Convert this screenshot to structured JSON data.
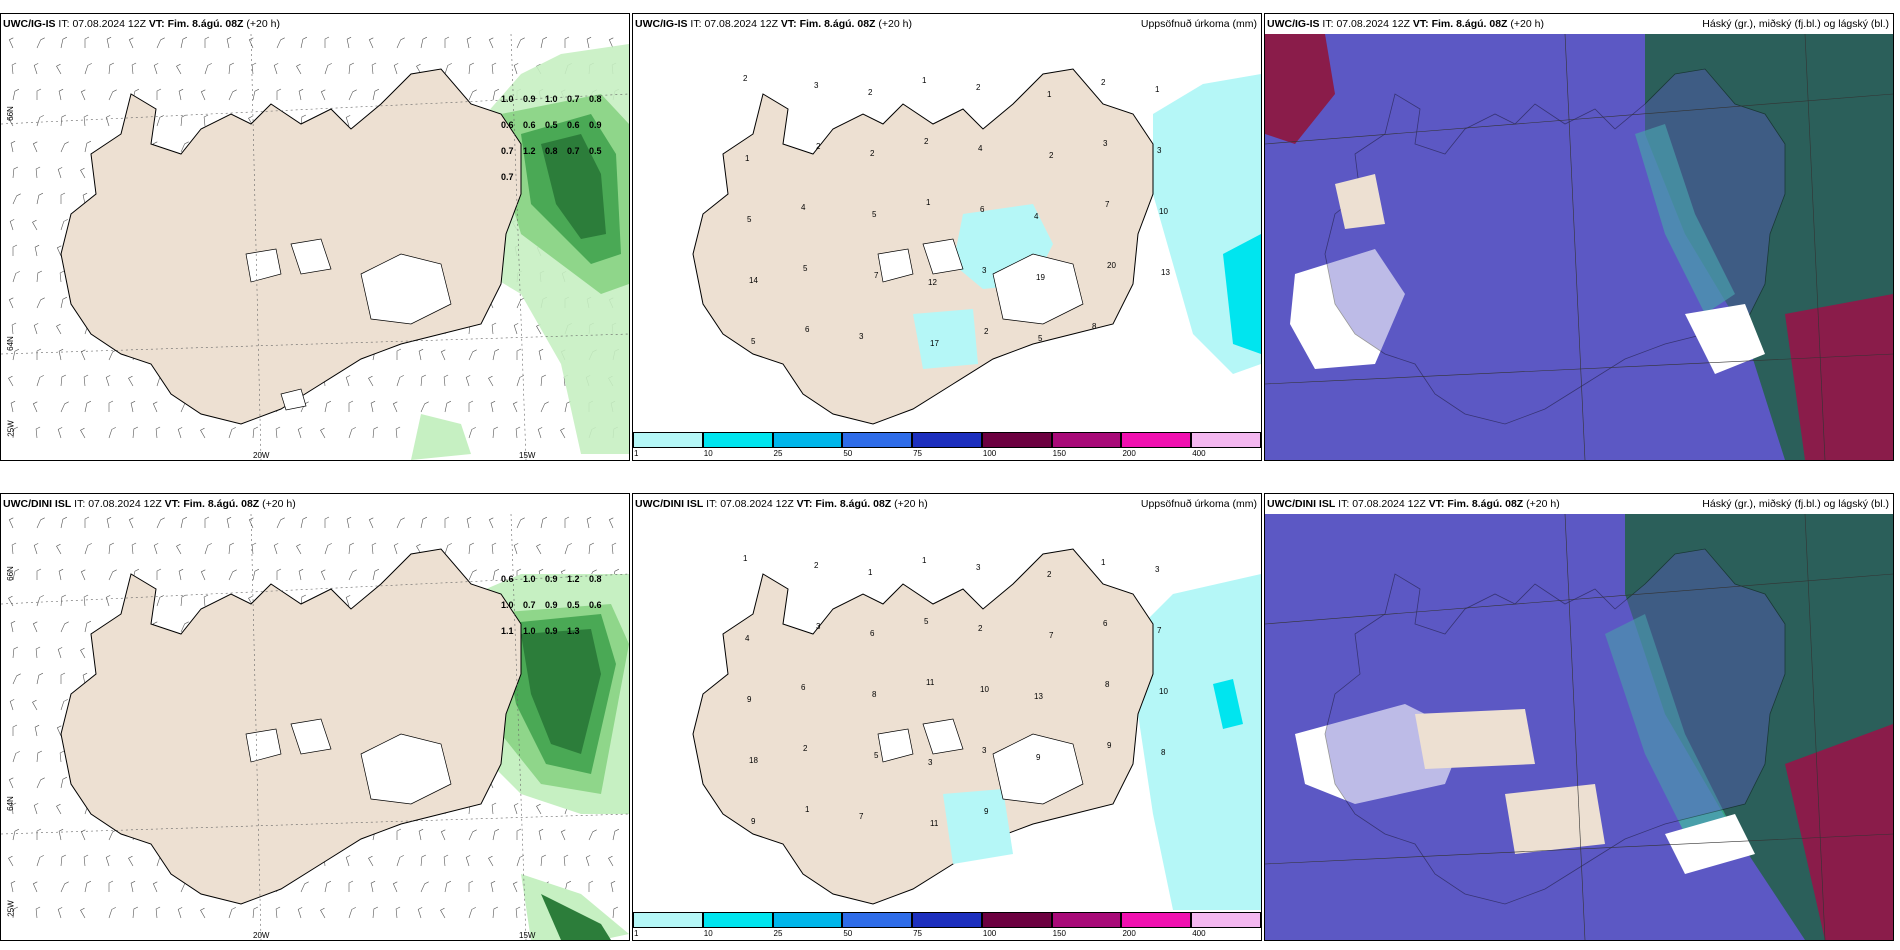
{
  "common": {
    "it_label": "IT:",
    "it_value": "07.08.2024 12Z",
    "vt_label": "VT:",
    "vt_value": "Fim. 8.ágú. 08Z",
    "lead": "(+20 h)",
    "precip_title": "Uppsöfnuð úrkoma (mm)",
    "cloud_title": "Háský (gr.), miðský (fj.bl.) og lágský (bl.)",
    "lat_labels": [
      "66N",
      "64N",
      "25W"
    ],
    "lon_labels": [
      "20W",
      "15W"
    ]
  },
  "rows": [
    {
      "model": "UWC/IG-IS",
      "wind_values": [
        "1.0",
        "0.9",
        "1.0",
        "0.7",
        "0.8",
        "0.6",
        "0.6",
        "0.5",
        "0.6",
        "0.9",
        "0.7",
        "1.2",
        "0.8",
        "0.7",
        "0.5",
        "0.7"
      ],
      "precip_values": [
        "2",
        "3",
        "2",
        "1",
        "2",
        "1",
        "2",
        "1",
        "1",
        "2",
        "2",
        "2",
        "4",
        "2",
        "3",
        "3",
        "5",
        "4",
        "5",
        "1",
        "6",
        "4",
        "7",
        "10",
        "14",
        "5",
        "7",
        "12",
        "3",
        "19",
        "20",
        "13",
        "5",
        "6",
        "3",
        "17",
        "2",
        "5",
        "8"
      ]
    },
    {
      "model": "UWC/DINI ISL",
      "wind_values": [
        "0.6",
        "1.0",
        "0.9",
        "1.2",
        "0.8",
        "1.0",
        "0.7",
        "0.9",
        "0.5",
        "0.6",
        "1.1",
        "1.0",
        "0.9",
        "1.3"
      ],
      "precip_values": [
        "1",
        "2",
        "1",
        "1",
        "3",
        "2",
        "1",
        "3",
        "4",
        "3",
        "6",
        "5",
        "2",
        "7",
        "6",
        "7",
        "9",
        "6",
        "8",
        "11",
        "10",
        "13",
        "8",
        "10",
        "18",
        "2",
        "5",
        "3",
        "3",
        "9",
        "9",
        "8",
        "9",
        "1",
        "7",
        "11",
        "9"
      ]
    }
  ],
  "colorbar": {
    "colors": [
      "#b5f7f7",
      "#00e5ef",
      "#00b6ea",
      "#2e6ce8",
      "#1c2fbe",
      "#6c0040",
      "#a80a78",
      "#f010b0",
      "#f4b8f0"
    ],
    "ticks": [
      "1",
      "10",
      "25",
      "50",
      "75",
      "100",
      "150",
      "200",
      "400"
    ]
  },
  "colors": {
    "land": "#ede0d2",
    "cloud_high": "#2b5f5a",
    "cloud_mid": "#5c58c4",
    "cloud_low": "#8a1c4a",
    "wind_green": "#1e7a2c"
  }
}
